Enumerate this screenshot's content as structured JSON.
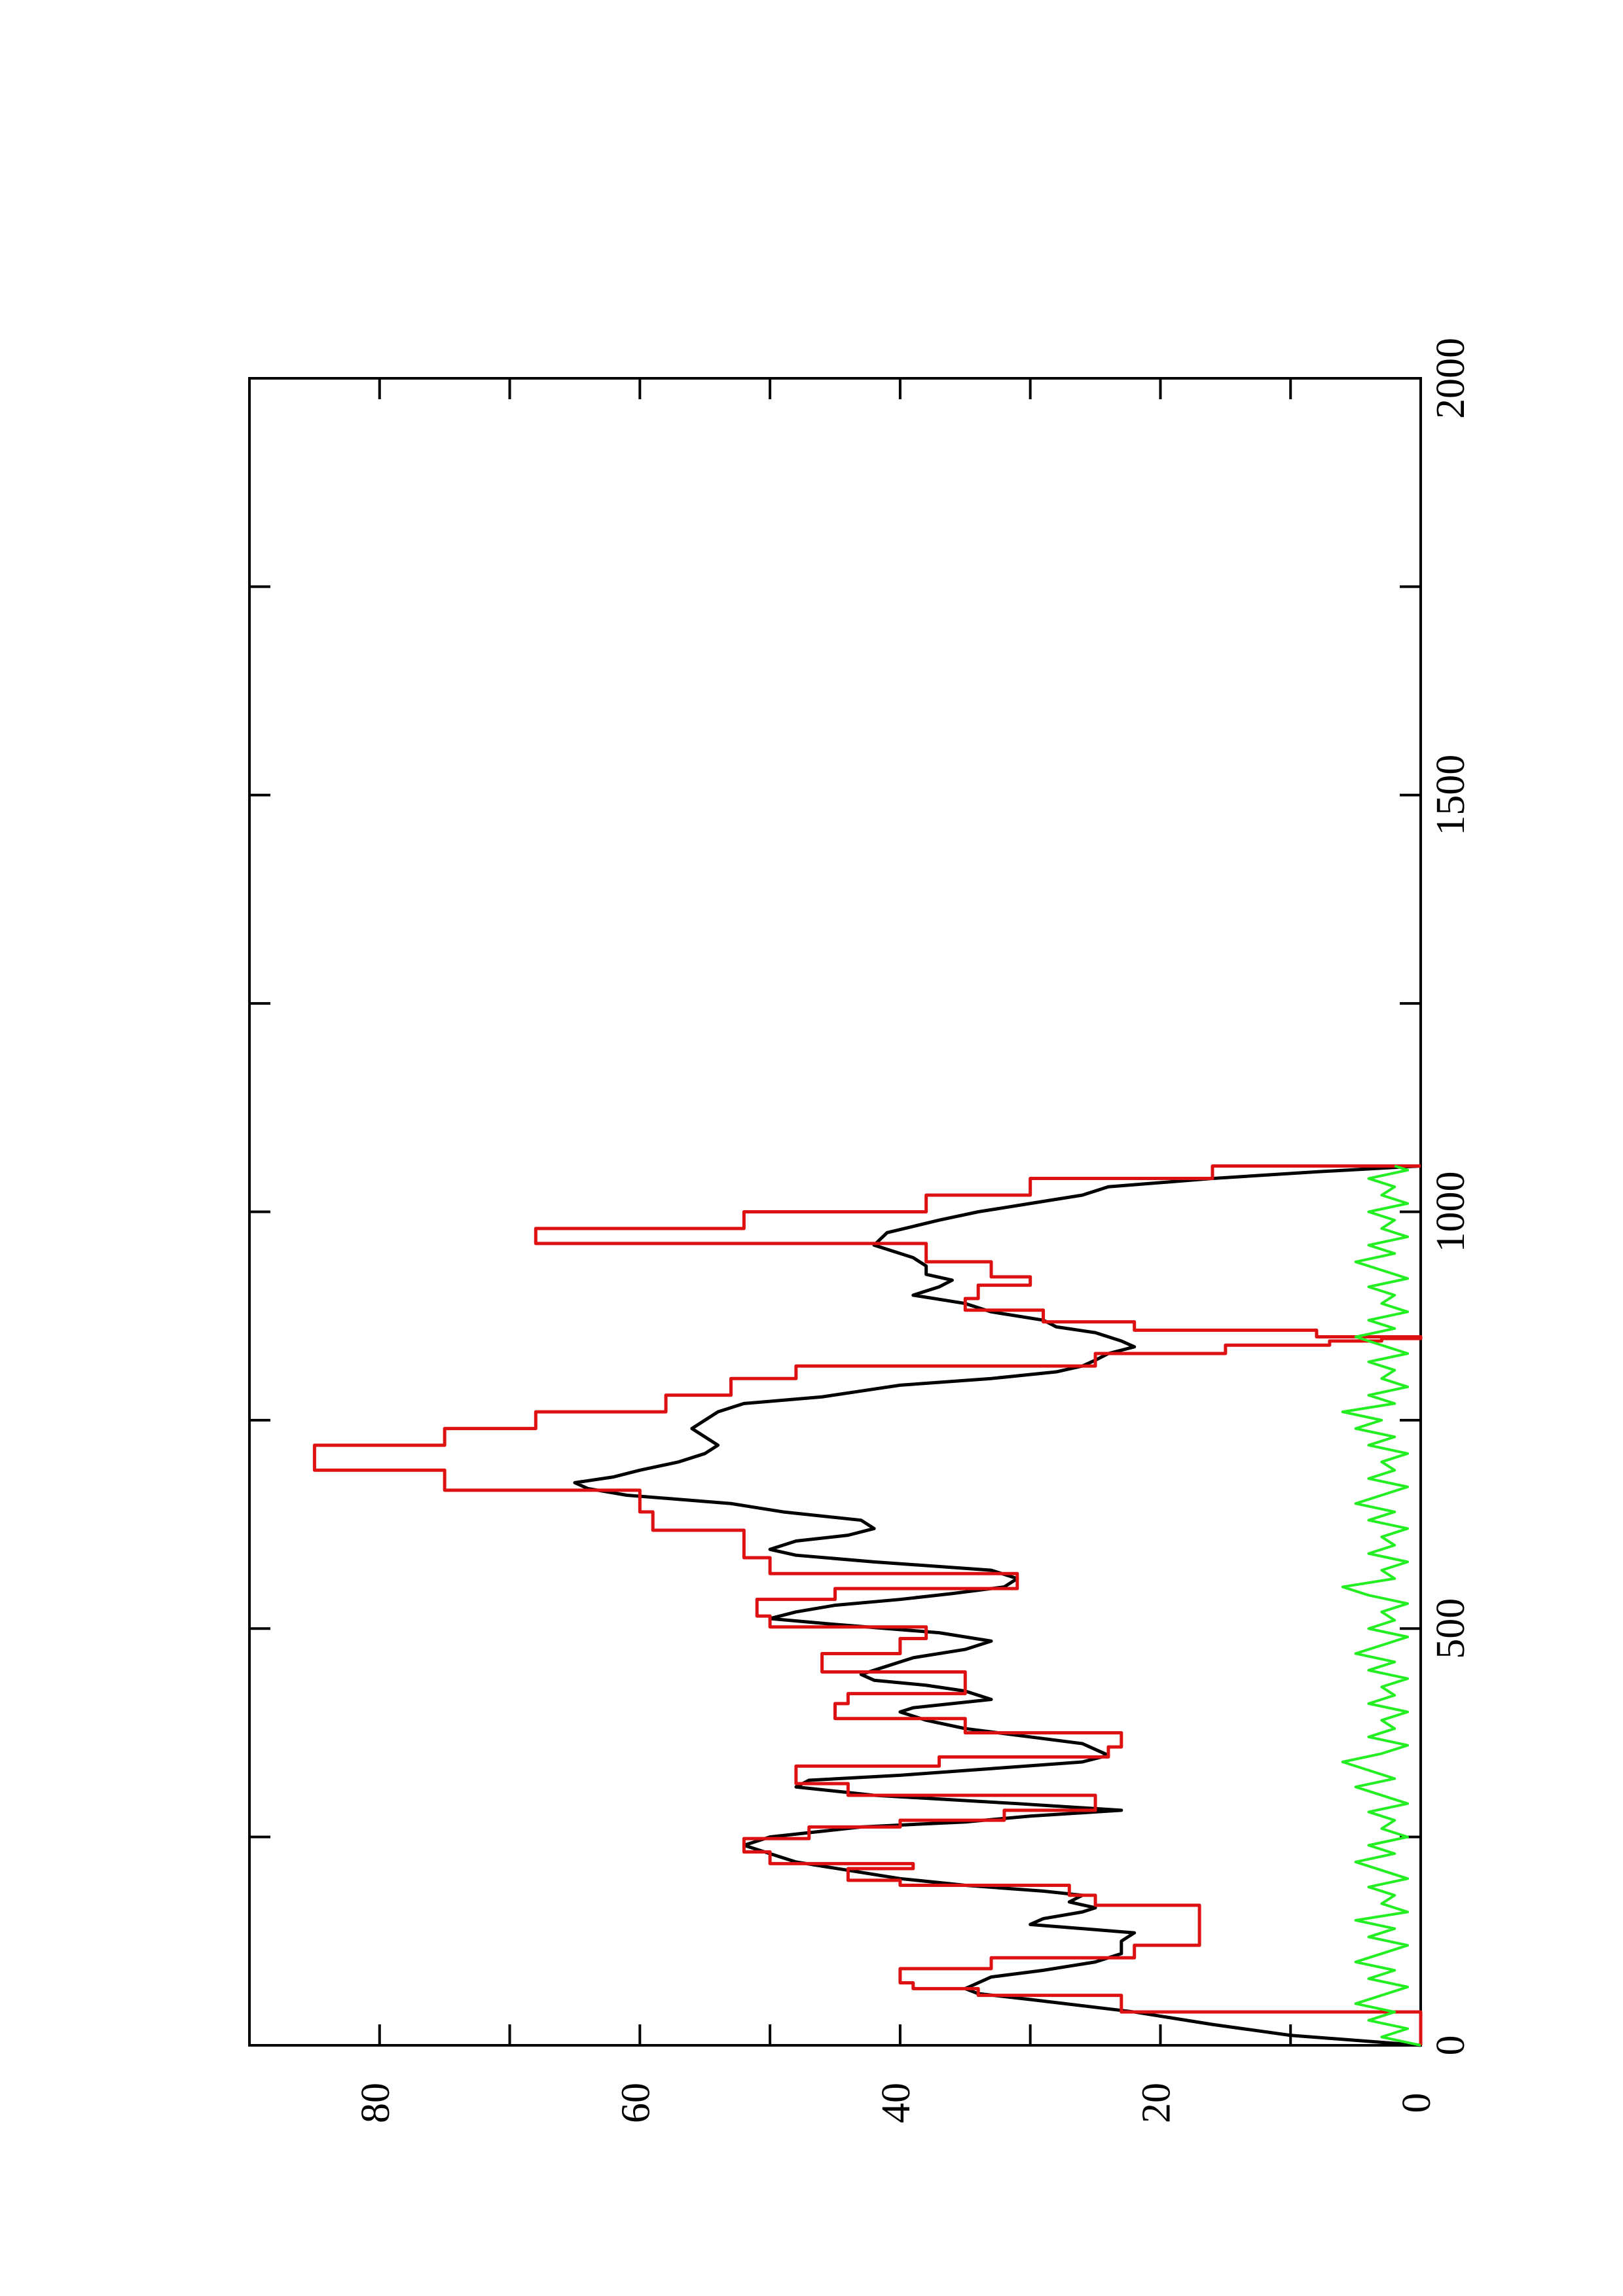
{
  "chart_data": {
    "type": "line",
    "orientation": "rotated-90-ccw",
    "title": "",
    "xlabel": "",
    "ylabel": "",
    "xlim": [
      0,
      2000
    ],
    "ylim": [
      0,
      90
    ],
    "x_ticks": [
      0,
      500,
      1000,
      1500,
      2000
    ],
    "x_tick_labels": [
      "0",
      "500",
      "1000",
      "1500",
      "2000"
    ],
    "y_ticks": [
      0,
      20,
      40,
      60,
      80
    ],
    "y_tick_labels": [
      "0",
      "20",
      "40",
      "60",
      "80"
    ],
    "grid": false,
    "legend": "none",
    "series": [
      {
        "color": "#000000",
        "style": "smooth",
        "points": [
          [
            0,
            0
          ],
          [
            12,
            10
          ],
          [
            25,
            16
          ],
          [
            40,
            22
          ],
          [
            55,
            30
          ],
          [
            62,
            34
          ],
          [
            68,
            35
          ],
          [
            75,
            34
          ],
          [
            82,
            33
          ],
          [
            90,
            29
          ],
          [
            100,
            25
          ],
          [
            110,
            23
          ],
          [
            125,
            23
          ],
          [
            135,
            22
          ],
          [
            145,
            30
          ],
          [
            152,
            29
          ],
          [
            160,
            26
          ],
          [
            165,
            25
          ],
          [
            172,
            27
          ],
          [
            180,
            26
          ],
          [
            185,
            29
          ],
          [
            192,
            35
          ],
          [
            200,
            40
          ],
          [
            210,
            44
          ],
          [
            220,
            48
          ],
          [
            230,
            50
          ],
          [
            240,
            52
          ],
          [
            250,
            50
          ],
          [
            262,
            43
          ],
          [
            268,
            35
          ],
          [
            275,
            30
          ],
          [
            280,
            25
          ],
          [
            282,
            23
          ],
          [
            290,
            31
          ],
          [
            300,
            42
          ],
          [
            310,
            48
          ],
          [
            318,
            47
          ],
          [
            324,
            40
          ],
          [
            332,
            33
          ],
          [
            340,
            26
          ],
          [
            348,
            24
          ],
          [
            355,
            25
          ],
          [
            362,
            26
          ],
          [
            370,
            30
          ],
          [
            380,
            35
          ],
          [
            390,
            38
          ],
          [
            400,
            40
          ],
          [
            405,
            39
          ],
          [
            415,
            33
          ],
          [
            425,
            35
          ],
          [
            432,
            38
          ],
          [
            438,
            42
          ],
          [
            445,
            43
          ],
          [
            455,
            41
          ],
          [
            465,
            39
          ],
          [
            475,
            35
          ],
          [
            485,
            33
          ],
          [
            495,
            37
          ],
          [
            505,
            45
          ],
          [
            512,
            50
          ],
          [
            520,
            48
          ],
          [
            528,
            45
          ],
          [
            535,
            40
          ],
          [
            542,
            36
          ],
          [
            550,
            32
          ],
          [
            560,
            31
          ],
          [
            570,
            33
          ],
          [
            580,
            42
          ],
          [
            588,
            48
          ],
          [
            595,
            50
          ],
          [
            605,
            48
          ],
          [
            612,
            44
          ],
          [
            620,
            42
          ],
          [
            630,
            43
          ],
          [
            640,
            49
          ],
          [
            650,
            53
          ],
          [
            660,
            61
          ],
          [
            668,
            64
          ],
          [
            675,
            65
          ],
          [
            682,
            62
          ],
          [
            690,
            60
          ],
          [
            700,
            57
          ],
          [
            710,
            55
          ],
          [
            720,
            54
          ],
          [
            730,
            55
          ],
          [
            740,
            56
          ],
          [
            750,
            55
          ],
          [
            760,
            54
          ],
          [
            770,
            52
          ],
          [
            778,
            46
          ],
          [
            785,
            43
          ],
          [
            792,
            40
          ],
          [
            800,
            33
          ],
          [
            808,
            28
          ],
          [
            815,
            26
          ],
          [
            822,
            25
          ],
          [
            830,
            24
          ],
          [
            838,
            22
          ],
          [
            845,
            23
          ],
          [
            855,
            25
          ],
          [
            862,
            28
          ],
          [
            870,
            29
          ],
          [
            880,
            33
          ],
          [
            890,
            35
          ],
          [
            900,
            39
          ],
          [
            910,
            37
          ],
          [
            918,
            36
          ],
          [
            925,
            38
          ],
          [
            935,
            38
          ],
          [
            945,
            39
          ],
          [
            960,
            42
          ],
          [
            975,
            41
          ],
          [
            990,
            37
          ],
          [
            1000,
            34
          ],
          [
            1010,
            30
          ],
          [
            1020,
            26
          ],
          [
            1030,
            24
          ],
          [
            1040,
            16
          ],
          [
            1048,
            8
          ],
          [
            1055,
            0
          ]
        ]
      },
      {
        "color": "#dd1111",
        "style": "step",
        "points": [
          [
            0,
            0
          ],
          [
            40,
            23
          ],
          [
            60,
            34
          ],
          [
            68,
            39
          ],
          [
            75,
            40
          ],
          [
            92,
            33
          ],
          [
            105,
            22
          ],
          [
            120,
            17
          ],
          [
            140,
            17
          ],
          [
            160,
            17
          ],
          [
            168,
            25
          ],
          [
            180,
            27
          ],
          [
            192,
            40
          ],
          [
            198,
            44
          ],
          [
            212,
            39
          ],
          [
            218,
            50
          ],
          [
            232,
            52
          ],
          [
            248,
            47
          ],
          [
            262,
            40
          ],
          [
            270,
            32
          ],
          [
            282,
            25
          ],
          [
            300,
            44
          ],
          [
            314,
            48
          ],
          [
            335,
            37
          ],
          [
            346,
            24
          ],
          [
            358,
            23
          ],
          [
            375,
            35
          ],
          [
            392,
            45
          ],
          [
            410,
            44
          ],
          [
            422,
            35
          ],
          [
            448,
            46
          ],
          [
            470,
            40
          ],
          [
            488,
            38
          ],
          [
            502,
            50
          ],
          [
            515,
            51
          ],
          [
            535,
            45
          ],
          [
            548,
            31
          ],
          [
            566,
            50
          ],
          [
            585,
            52
          ],
          [
            600,
            52
          ],
          [
            618,
            59
          ],
          [
            640,
            60
          ],
          [
            666,
            75
          ],
          [
            690,
            85
          ],
          [
            720,
            75
          ],
          [
            740,
            68
          ],
          [
            760,
            58
          ],
          [
            780,
            53
          ],
          [
            800,
            48
          ],
          [
            815,
            25
          ],
          [
            830,
            15
          ],
          [
            840,
            7
          ],
          [
            845,
            3
          ],
          [
            848,
            0
          ],
          [
            850,
            8
          ],
          [
            858,
            22
          ],
          [
            868,
            29
          ],
          [
            882,
            35
          ],
          [
            896,
            34
          ],
          [
            912,
            30
          ],
          [
            922,
            33
          ],
          [
            940,
            38
          ],
          [
            962,
            68
          ],
          [
            980,
            52
          ],
          [
            1000,
            38
          ],
          [
            1020,
            30
          ],
          [
            1040,
            16
          ],
          [
            1055,
            0
          ]
        ]
      },
      {
        "color": "#22ee22",
        "style": "noise",
        "points": [
          [
            0,
            0
          ],
          [
            10,
            3
          ],
          [
            20,
            1
          ],
          [
            30,
            4
          ],
          [
            40,
            2
          ],
          [
            50,
            5
          ],
          [
            60,
            3
          ],
          [
            70,
            1
          ],
          [
            80,
            4
          ],
          [
            90,
            2
          ],
          [
            100,
            5
          ],
          [
            110,
            3
          ],
          [
            120,
            1
          ],
          [
            130,
            4
          ],
          [
            140,
            2
          ],
          [
            150,
            5
          ],
          [
            160,
            1
          ],
          [
            170,
            3
          ],
          [
            180,
            2
          ],
          [
            190,
            4
          ],
          [
            200,
            1
          ],
          [
            210,
            3
          ],
          [
            220,
            5
          ],
          [
            230,
            2
          ],
          [
            240,
            4
          ],
          [
            250,
            1
          ],
          [
            260,
            3
          ],
          [
            270,
            2
          ],
          [
            280,
            4
          ],
          [
            290,
            1
          ],
          [
            300,
            3
          ],
          [
            310,
            5
          ],
          [
            320,
            2
          ],
          [
            330,
            4
          ],
          [
            340,
            6
          ],
          [
            350,
            3
          ],
          [
            360,
            1
          ],
          [
            370,
            4
          ],
          [
            380,
            2
          ],
          [
            390,
            3
          ],
          [
            400,
            1
          ],
          [
            410,
            4
          ],
          [
            420,
            2
          ],
          [
            430,
            3
          ],
          [
            440,
            1
          ],
          [
            450,
            4
          ],
          [
            460,
            2
          ],
          [
            470,
            5
          ],
          [
            480,
            3
          ],
          [
            490,
            1
          ],
          [
            500,
            4
          ],
          [
            510,
            2
          ],
          [
            520,
            3
          ],
          [
            530,
            1
          ],
          [
            540,
            4
          ],
          [
            550,
            6
          ],
          [
            560,
            2
          ],
          [
            570,
            3
          ],
          [
            580,
            1
          ],
          [
            590,
            4
          ],
          [
            600,
            2
          ],
          [
            610,
            3
          ],
          [
            620,
            1
          ],
          [
            630,
            4
          ],
          [
            640,
            2
          ],
          [
            650,
            5
          ],
          [
            660,
            3
          ],
          [
            670,
            1
          ],
          [
            680,
            4
          ],
          [
            690,
            2
          ],
          [
            700,
            3
          ],
          [
            710,
            1
          ],
          [
            720,
            4
          ],
          [
            730,
            2
          ],
          [
            740,
            5
          ],
          [
            750,
            3
          ],
          [
            760,
            6
          ],
          [
            770,
            2
          ],
          [
            780,
            4
          ],
          [
            790,
            1
          ],
          [
            800,
            3
          ],
          [
            810,
            2
          ],
          [
            820,
            4
          ],
          [
            830,
            1
          ],
          [
            840,
            3
          ],
          [
            850,
            5
          ],
          [
            860,
            2
          ],
          [
            870,
            4
          ],
          [
            880,
            1
          ],
          [
            890,
            3
          ],
          [
            900,
            2
          ],
          [
            910,
            4
          ],
          [
            920,
            1
          ],
          [
            930,
            3
          ],
          [
            940,
            5
          ],
          [
            950,
            2
          ],
          [
            960,
            4
          ],
          [
            970,
            1
          ],
          [
            980,
            3
          ],
          [
            990,
            2
          ],
          [
            1000,
            4
          ],
          [
            1010,
            1
          ],
          [
            1020,
            3
          ],
          [
            1030,
            2
          ],
          [
            1040,
            4
          ],
          [
            1050,
            1
          ],
          [
            1055,
            2
          ]
        ]
      }
    ]
  }
}
